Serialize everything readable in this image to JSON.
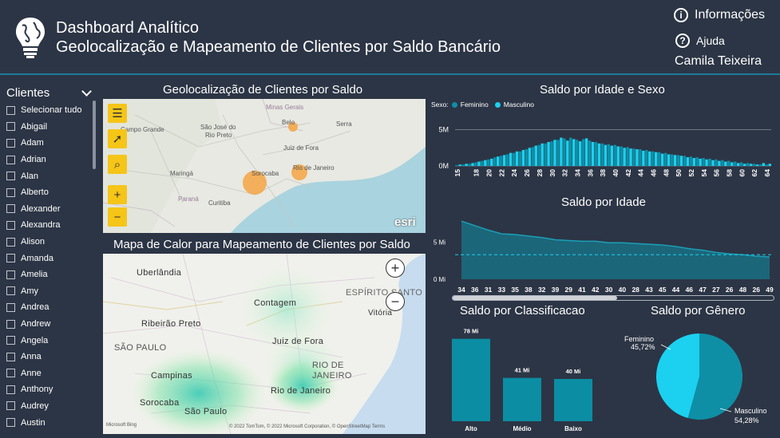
{
  "header": {
    "title": "Dashboard Analítico",
    "subtitle": "Geolocalização e Mapeamento de Clientes por Saldo Bancário",
    "info_label": "Informações",
    "help_label": "Ajuda",
    "user": "Camila Teixeira"
  },
  "slicer": {
    "title": "Clientes",
    "items": [
      "Selecionar tudo",
      "Abigail",
      "Adam",
      "Adrian",
      "Alan",
      "Alberto",
      "Alexander",
      "Alexandra",
      "Alison",
      "Amanda",
      "Amelia",
      "Amy",
      "Andrea",
      "Andrew",
      "Angela",
      "Anna",
      "Anne",
      "Anthony",
      "Audrey",
      "Austin"
    ]
  },
  "map1": {
    "title": "Geolocalização de Clientes por Saldo",
    "labels": [
      "Minas Gerais",
      "Belo",
      "Serra",
      "Campo Grande",
      "São José do",
      "Rio Preto",
      "Juiz de Fora",
      "Maringá",
      "Sorocaba",
      "Rio de Janeiro",
      "Paraná",
      "Curitiba"
    ],
    "logo": "esri"
  },
  "map2": {
    "title": "Mapa de Calor para Mapeamento de Clientes por Saldo",
    "labels": [
      "Uberlândia",
      "ESPÍRITO SANTO",
      "Contagem",
      "Vitória",
      "Ribeirão Preto",
      "SÃO PAULO",
      "Juiz de Fora",
      "RIO DE",
      "JANEIRO",
      "Campinas",
      "Rio de Janeiro",
      "Sorocaba",
      "São Paulo"
    ],
    "attribution": "© 2022 TomTom, © 2022 Microsoft Corporation, © OpenStreetMap  Terms",
    "bing": "Microsoft Bing"
  },
  "colors": {
    "feminino": "#0e8fa6",
    "masculino": "#1cd0f0",
    "bar": "#0b8da3",
    "area": "#1a6f82",
    "accent": "#1f7a99"
  },
  "chart_data": [
    {
      "type": "bar",
      "title": "Saldo por Idade e Sexo",
      "legend_title": "Sexo:",
      "ylabel_ticks": [
        "5M",
        "0M"
      ],
      "x_tick_labels": [
        "15",
        "18",
        "20",
        "22",
        "24",
        "26",
        "28",
        "30",
        "32",
        "34",
        "36",
        "38",
        "40",
        "42",
        "44",
        "46",
        "48",
        "50",
        "52",
        "54",
        "56",
        "58",
        "60",
        "62",
        "64"
      ],
      "x": [
        15,
        16,
        17,
        18,
        19,
        20,
        21,
        22,
        23,
        24,
        25,
        26,
        27,
        28,
        29,
        30,
        31,
        32,
        33,
        34,
        35,
        36,
        37,
        38,
        39,
        40,
        41,
        42,
        43,
        44,
        45,
        46,
        47,
        48,
        49,
        50,
        51,
        52,
        53,
        54,
        55,
        56,
        57,
        58,
        59,
        60,
        61,
        62,
        63,
        64
      ],
      "ylim": [
        0,
        5.5
      ],
      "series": [
        {
          "name": "Feminino",
          "values": [
            0.1,
            0.2,
            0.3,
            0.5,
            0.7,
            0.9,
            1.2,
            1.4,
            1.6,
            1.8,
            2.0,
            2.3,
            2.6,
            2.9,
            3.1,
            3.4,
            3.6,
            3.8,
            3.9,
            3.6,
            3.7,
            3.5,
            3.3,
            3.1,
            3.0,
            2.9,
            2.7,
            2.6,
            2.4,
            2.3,
            2.2,
            2.0,
            1.9,
            1.8,
            1.6,
            1.5,
            1.4,
            1.3,
            1.2,
            1.1,
            1.0,
            0.9,
            0.8,
            0.7,
            0.6,
            0.5,
            0.4,
            0.3,
            0.2,
            0.2
          ]
        },
        {
          "name": "Masculino",
          "values": [
            0.2,
            0.3,
            0.4,
            0.6,
            0.8,
            1.0,
            1.3,
            1.5,
            1.8,
            2.0,
            2.2,
            2.5,
            2.8,
            3.1,
            3.3,
            3.6,
            3.9,
            3.5,
            3.7,
            3.4,
            3.8,
            3.3,
            3.1,
            2.9,
            2.8,
            2.7,
            2.5,
            2.4,
            2.3,
            2.1,
            2.0,
            1.9,
            1.7,
            1.6,
            1.5,
            1.4,
            1.2,
            1.1,
            1.0,
            0.9,
            0.8,
            0.7,
            0.6,
            0.5,
            0.4,
            0.3,
            0.3,
            0.2,
            0.4,
            0.3
          ]
        }
      ]
    },
    {
      "type": "area",
      "title": "Saldo por Idade",
      "ylabel_ticks": [
        "5 Mi",
        "0 Mi"
      ],
      "ylim": [
        0,
        9
      ],
      "reference_line": 3.3,
      "categories": [
        "34",
        "36",
        "31",
        "33",
        "35",
        "38",
        "32",
        "39",
        "29",
        "41",
        "42",
        "30",
        "40",
        "28",
        "43",
        "45",
        "44",
        "46",
        "47",
        "27",
        "26",
        "48",
        "26",
        "49"
      ],
      "values": [
        7.8,
        7.2,
        6.6,
        6.1,
        6.0,
        5.8,
        5.6,
        5.3,
        5.2,
        5.1,
        5.1,
        4.9,
        4.9,
        4.8,
        4.7,
        4.6,
        4.4,
        4.1,
        3.9,
        3.6,
        3.4,
        3.3,
        3.1,
        3.0
      ]
    },
    {
      "type": "bar",
      "title": "Saldo por Classificacao",
      "categories": [
        "Alto",
        "Médio",
        "Baixo"
      ],
      "values": [
        78,
        41,
        40
      ],
      "data_labels": [
        "78 Mi",
        "41 Mi",
        "40 Mi"
      ],
      "ylim": [
        0,
        80
      ]
    },
    {
      "type": "pie",
      "title": "Saldo por Gênero",
      "categories": [
        "Feminino",
        "Masculino"
      ],
      "values": [
        45.72,
        54.28
      ],
      "data_labels": [
        "45,72%",
        "54,28%"
      ]
    }
  ]
}
